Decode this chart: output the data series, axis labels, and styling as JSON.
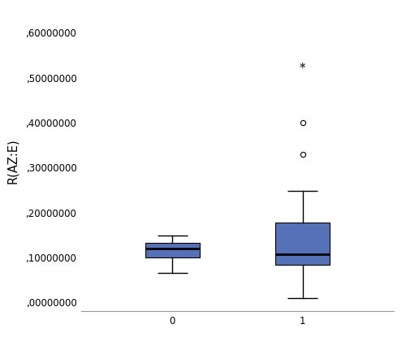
{
  "group0": {
    "q1": 0.1,
    "median": 0.12,
    "q3": 0.132,
    "whisker_low": 0.065,
    "whisker_high": 0.148,
    "fliers": [],
    "star_fliers": []
  },
  "group1": {
    "q1": 0.083,
    "median": 0.108,
    "q3": 0.178,
    "whisker_low": 0.01,
    "whisker_high": 0.248,
    "fliers": [
      0.33,
      0.4
    ],
    "star_fliers": [
      0.52
    ]
  },
  "box_color": "#5571b8",
  "box_edge_color": "#000000",
  "median_color": "#000000",
  "whisker_color": "#000000",
  "cap_color": "#000000",
  "flier_color": "#000000",
  "ylabel": "R(AZ:E)",
  "yticks": [
    0.0,
    0.1,
    0.2,
    0.3,
    0.4,
    0.5,
    0.6
  ],
  "ytick_labels": [
    ",00000000",
    ",10000000",
    ",20000000",
    ",30000000",
    ",40000000",
    ",50000000",
    ",60000000"
  ],
  "xtick_labels": [
    "0",
    "1"
  ],
  "ylim": [
    -0.02,
    0.65
  ],
  "xlim": [
    0.3,
    2.7
  ],
  "box_width": 0.42,
  "bg_color": "#ffffff",
  "tick_fontsize": 8.5,
  "label_fontsize": 10.5
}
